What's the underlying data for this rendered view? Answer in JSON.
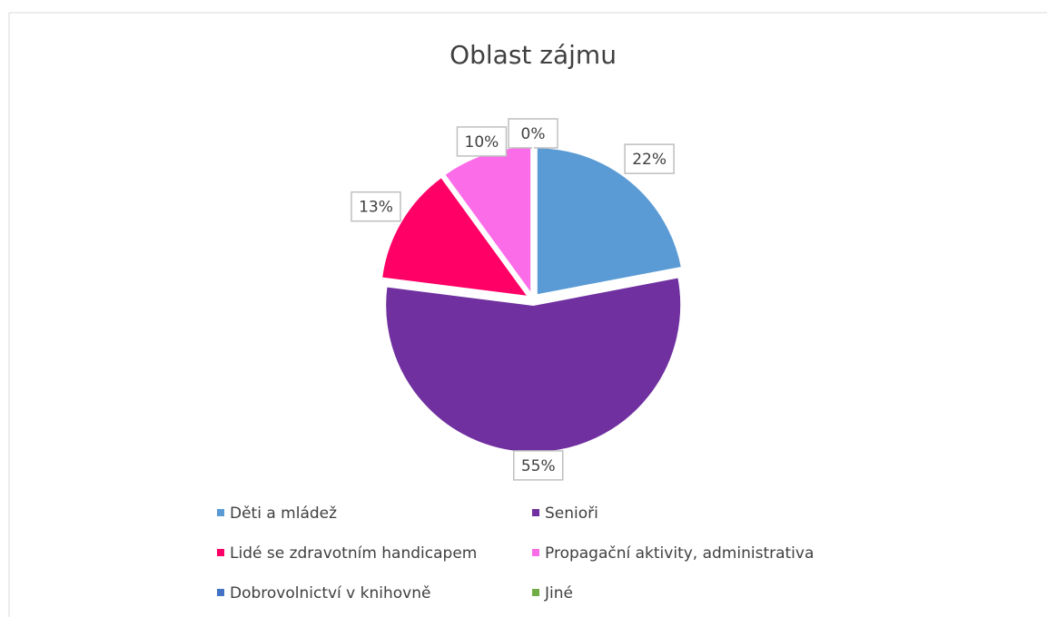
{
  "chart_data": {
    "type": "pie",
    "title": "Oblast zájmu",
    "categories": [
      "Děti a mládež",
      "Senioři",
      "Lidé se zdravotním handicapem",
      "Propagační aktivity, administrativa",
      "Dobrovolnictví v knihovně",
      "Jiné"
    ],
    "values": [
      22,
      55,
      13,
      10,
      0,
      0
    ],
    "value_labels": [
      "22%",
      "55%",
      "13%",
      "10%",
      "0%",
      null
    ],
    "colors": [
      "#5b9bd5",
      "#7030a0",
      "#ff0066",
      "#fb6ce8",
      "#4472c4",
      "#70ad47"
    ],
    "legend": "bottom"
  }
}
